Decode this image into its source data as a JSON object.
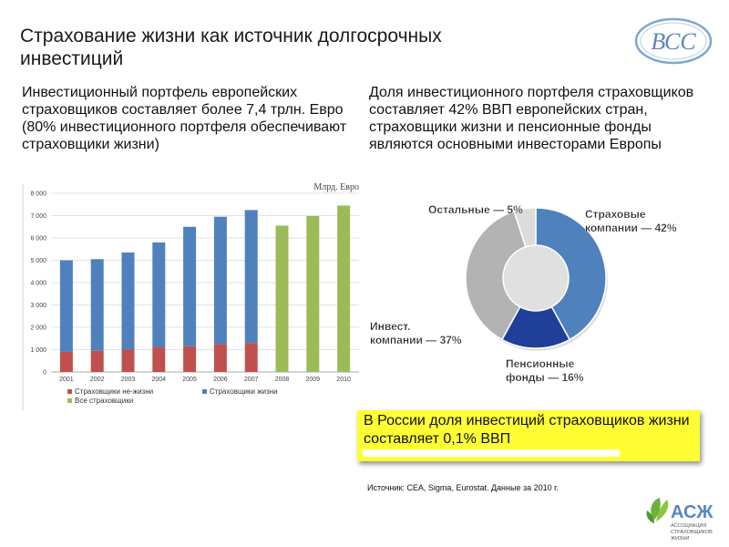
{
  "title": "Страхование жизни как источник долгосрочных инвестиций",
  "logo_text": "ВСС",
  "left_text": "Инвестиционный портфель европейских страховщиков составляет более 7,4 трлн. Евро (80% инвестиционного портфеля обеспечивают страховщики жизни)",
  "right_text": "Доля инвестиционного портфеля страховщиков составляет 42% ВВП европейских стран, страховщики жизни и пенсионные фонды являются основными инвесторами Европы",
  "callout_text": "В России доля инвестиций страховщиков жизни составляет 0,1% ВВП",
  "source_text": "Источник: CEA, Sigma, Eurostat. Данные за 2010 г.",
  "assoc": {
    "abbr": "АСЖ",
    "line1": "АССОЦИАЦИЯ",
    "line2": "СТРАХОВЩИКОВ",
    "line3": "ЖИЗНИ"
  },
  "colors": {
    "nonlife": "#c0504d",
    "life": "#4f81bd",
    "all": "#9bbb59",
    "pie_life": "#4f81bd",
    "pie_pension": "#1f3f99",
    "pie_invest": "#b3b3b3",
    "pie_other": "#dcdcdc"
  },
  "chart_data": [
    {
      "type": "bar",
      "unit_label": "Млрд. Евро",
      "categories": [
        "2001",
        "2002",
        "2003",
        "2004",
        "2005",
        "2006",
        "2007",
        "2008",
        "2009",
        "2010"
      ],
      "ylim": [
        0,
        8000
      ],
      "yticks": [
        "0",
        "1 000",
        "2 000",
        "3 000",
        "4 000",
        "5 000",
        "6 000",
        "7 000",
        "8 000"
      ],
      "grid": true,
      "legend_position": "bottom",
      "series": [
        {
          "name": "Страховщики не-жизни",
          "values": [
            900,
            950,
            1000,
            1100,
            1150,
            1250,
            1300,
            null,
            null,
            null
          ]
        },
        {
          "name": "Страховщики жизни",
          "values": [
            4100,
            4100,
            4350,
            4700,
            5350,
            5700,
            5950,
            null,
            null,
            null
          ]
        },
        {
          "name": "Все страховщики",
          "values": [
            null,
            null,
            null,
            null,
            null,
            null,
            null,
            6550,
            6980,
            7450
          ]
        }
      ]
    },
    {
      "type": "pie",
      "slices": [
        {
          "label": "Страховые компании — 42%",
          "value": 42
        },
        {
          "label": "Пенсионные фонды — 16%",
          "value": 16
        },
        {
          "label": "Инвест. компании — 37%",
          "value": 37
        },
        {
          "label": "Остальные — 5%",
          "value": 5
        }
      ]
    }
  ]
}
